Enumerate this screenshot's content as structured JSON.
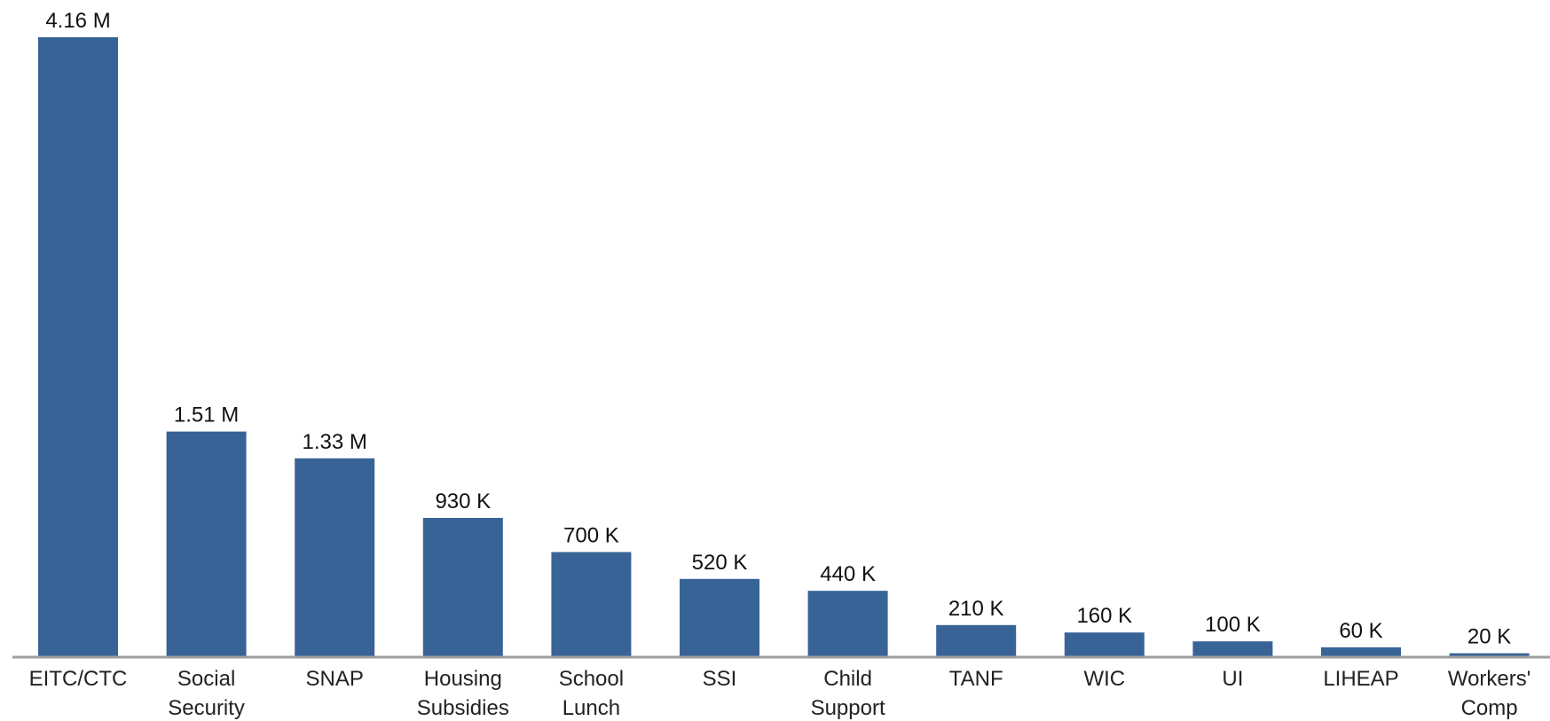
{
  "chart_data": {
    "type": "bar",
    "categories": [
      [
        "EITC/CTC"
      ],
      [
        "Social",
        "Security"
      ],
      [
        "SNAP"
      ],
      [
        "Housing",
        "Subsidies"
      ],
      [
        "School",
        "Lunch"
      ],
      [
        "SSI"
      ],
      [
        "Child",
        "Support"
      ],
      [
        "TANF"
      ],
      [
        "WIC"
      ],
      [
        "UI"
      ],
      [
        "LIHEAP"
      ],
      [
        "Workers'",
        "Comp"
      ]
    ],
    "values": [
      4160000,
      1510000,
      1330000,
      930000,
      700000,
      520000,
      440000,
      210000,
      160000,
      100000,
      60000,
      20000
    ],
    "value_labels": [
      "4.16 M",
      "1.51 M",
      "1.33 M",
      "930 K",
      "700 K",
      "520 K",
      "440 K",
      "210 K",
      "160 K",
      "100 K",
      "60 K",
      "20 K"
    ],
    "ylim": [
      0,
      4160000
    ],
    "bar_color": "#386397",
    "axis_color": "#9e9e9e",
    "grid": false,
    "legend": "none"
  }
}
